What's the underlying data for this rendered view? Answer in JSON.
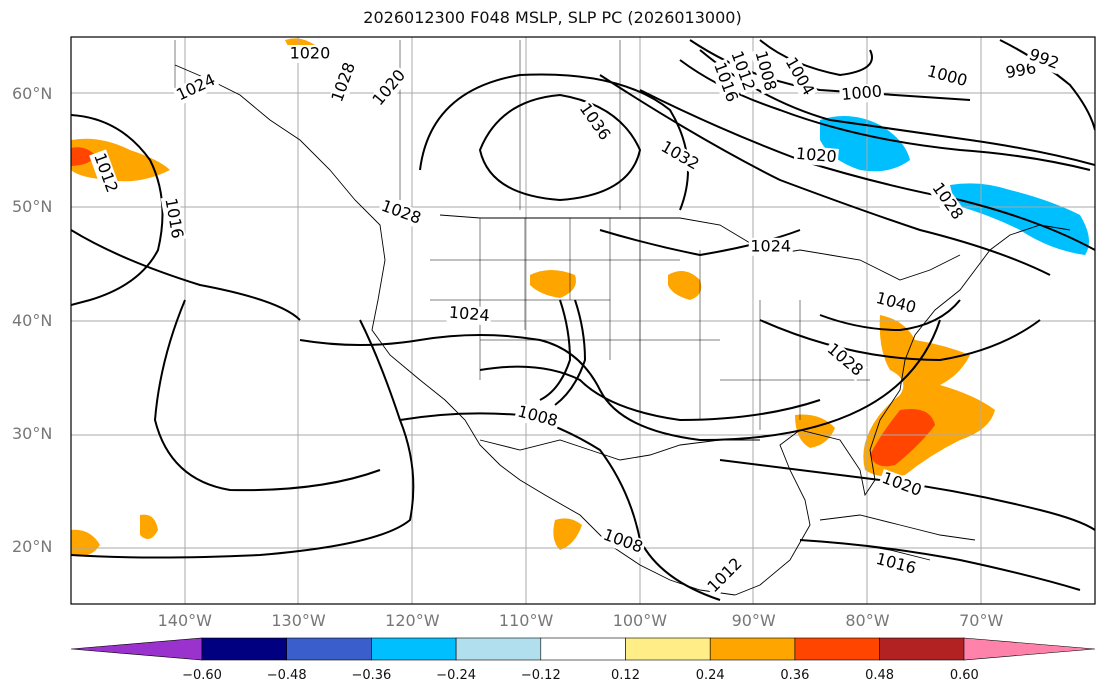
{
  "title": "2026012300 F048 MSLP, SLP PC (2026013000)",
  "axes": {
    "lat_labels": [
      {
        "value": 60,
        "text": "60°N"
      },
      {
        "value": 50,
        "text": "50°N"
      },
      {
        "value": 40,
        "text": "40°N"
      },
      {
        "value": 30,
        "text": "30°N"
      },
      {
        "value": 20,
        "text": "20°N"
      }
    ],
    "lon_labels": [
      {
        "value": -140,
        "text": "140°W"
      },
      {
        "value": -130,
        "text": "130°W"
      },
      {
        "value": -120,
        "text": "120°W"
      },
      {
        "value": -110,
        "text": "110°W"
      },
      {
        "value": -100,
        "text": "100°W"
      },
      {
        "value": -90,
        "text": "90°W"
      },
      {
        "value": -80,
        "text": "80°W"
      },
      {
        "value": -70,
        "text": "70°W"
      }
    ],
    "lon_range": [
      -150,
      -60
    ],
    "lat_range": [
      15,
      65
    ]
  },
  "isobar_labels": [
    {
      "text": "1020",
      "lon": -129,
      "lat": 63.5,
      "rot": 0
    },
    {
      "text": "1024",
      "lon": -139,
      "lat": 60.5,
      "rot": -25
    },
    {
      "text": "1028",
      "lon": -126,
      "lat": 61,
      "rot": -70
    },
    {
      "text": "1020",
      "lon": -122,
      "lat": 60.5,
      "rot": -50
    },
    {
      "text": "1012",
      "lon": -147,
      "lat": 53,
      "rot": 70
    },
    {
      "text": "1016",
      "lon": -141,
      "lat": 49,
      "rot": 80
    },
    {
      "text": "1028",
      "lon": -121,
      "lat": 49.5,
      "rot": 20
    },
    {
      "text": "1036",
      "lon": -104,
      "lat": 57.5,
      "rot": 55
    },
    {
      "text": "1032",
      "lon": -96.5,
      "lat": 54.5,
      "rot": 30
    },
    {
      "text": "1016",
      "lon": -92.5,
      "lat": 61,
      "rot": 70
    },
    {
      "text": "1012",
      "lon": -91,
      "lat": 62,
      "rot": 70
    },
    {
      "text": "1008",
      "lon": -89,
      "lat": 62,
      "rot": 75
    },
    {
      "text": "1004",
      "lon": -86,
      "lat": 61.5,
      "rot": 60
    },
    {
      "text": "1000",
      "lon": -80.5,
      "lat": 60,
      "rot": -5
    },
    {
      "text": "1000",
      "lon": -73,
      "lat": 61.5,
      "rot": 15
    },
    {
      "text": "996",
      "lon": -66.5,
      "lat": 62,
      "rot": -10
    },
    {
      "text": "992",
      "lon": -64.5,
      "lat": 63,
      "rot": 20
    },
    {
      "text": "1020",
      "lon": -84.5,
      "lat": 54.5,
      "rot": 5
    },
    {
      "text": "1028",
      "lon": -73,
      "lat": 50.5,
      "rot": 55
    },
    {
      "text": "1024",
      "lon": -88.5,
      "lat": 46.5,
      "rot": 0
    },
    {
      "text": "1040",
      "lon": -77.5,
      "lat": 41.5,
      "rot": 15
    },
    {
      "text": "1028",
      "lon": -82,
      "lat": 36.5,
      "rot": 40
    },
    {
      "text": "1024",
      "lon": -115,
      "lat": 40.5,
      "rot": 5
    },
    {
      "text": "1008",
      "lon": -109,
      "lat": 31.5,
      "rot": 15
    },
    {
      "text": "1020",
      "lon": -77,
      "lat": 25.5,
      "rot": 20
    },
    {
      "text": "1008",
      "lon": -101.5,
      "lat": 20.5,
      "rot": 20
    },
    {
      "text": "1012",
      "lon": -92.5,
      "lat": 17.5,
      "rot": -45
    },
    {
      "text": "1016",
      "lon": -77.5,
      "lat": 18.5,
      "rot": 15
    }
  ],
  "colorbar": {
    "ticks": [
      "−0.60",
      "−0.48",
      "−0.36",
      "−0.24",
      "−0.12",
      "0.12",
      "0.24",
      "0.36",
      "0.48",
      "0.60"
    ],
    "colors": [
      "#9a32cd",
      "#000080",
      "#3a5fcd",
      "#00bfff",
      "#b2dfee",
      "#ffffff",
      "#ffee88",
      "#ffa500",
      "#ff4500",
      "#b22222",
      "#ff82ab"
    ]
  }
}
